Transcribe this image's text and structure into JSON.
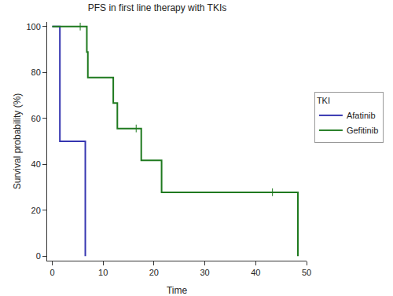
{
  "chart_data": {
    "type": "step",
    "title": "PFS in first line therapy with TKIs",
    "x_label": "Time",
    "y_label": "Survival probability (%)",
    "legend_title": "TKI",
    "legend": "right",
    "grid": false,
    "xlim": [
      -1,
      50
    ],
    "ylim": [
      -2,
      102
    ],
    "xticks": [
      0,
      10,
      20,
      30,
      40,
      50
    ],
    "yticks": [
      0,
      20,
      40,
      60,
      80,
      100
    ],
    "series": [
      {
        "name": "Afatinib",
        "color": "#3535b0",
        "marker": "line-ns",
        "x": [
          0,
          1.5,
          6.5
        ],
        "values": [
          100,
          50,
          0
        ]
      },
      {
        "name": "Gefitinib",
        "color": "#1f7a1f",
        "marker": "line-ns",
        "x": [
          0,
          6.8,
          7,
          12,
          12.8,
          17.5,
          21.5,
          48.3
        ],
        "values": [
          100,
          88.9,
          77.8,
          66.7,
          55.6,
          41.7,
          27.8,
          0
        ],
        "censored": [
          5.5,
          16.5,
          43.3
        ]
      }
    ]
  }
}
